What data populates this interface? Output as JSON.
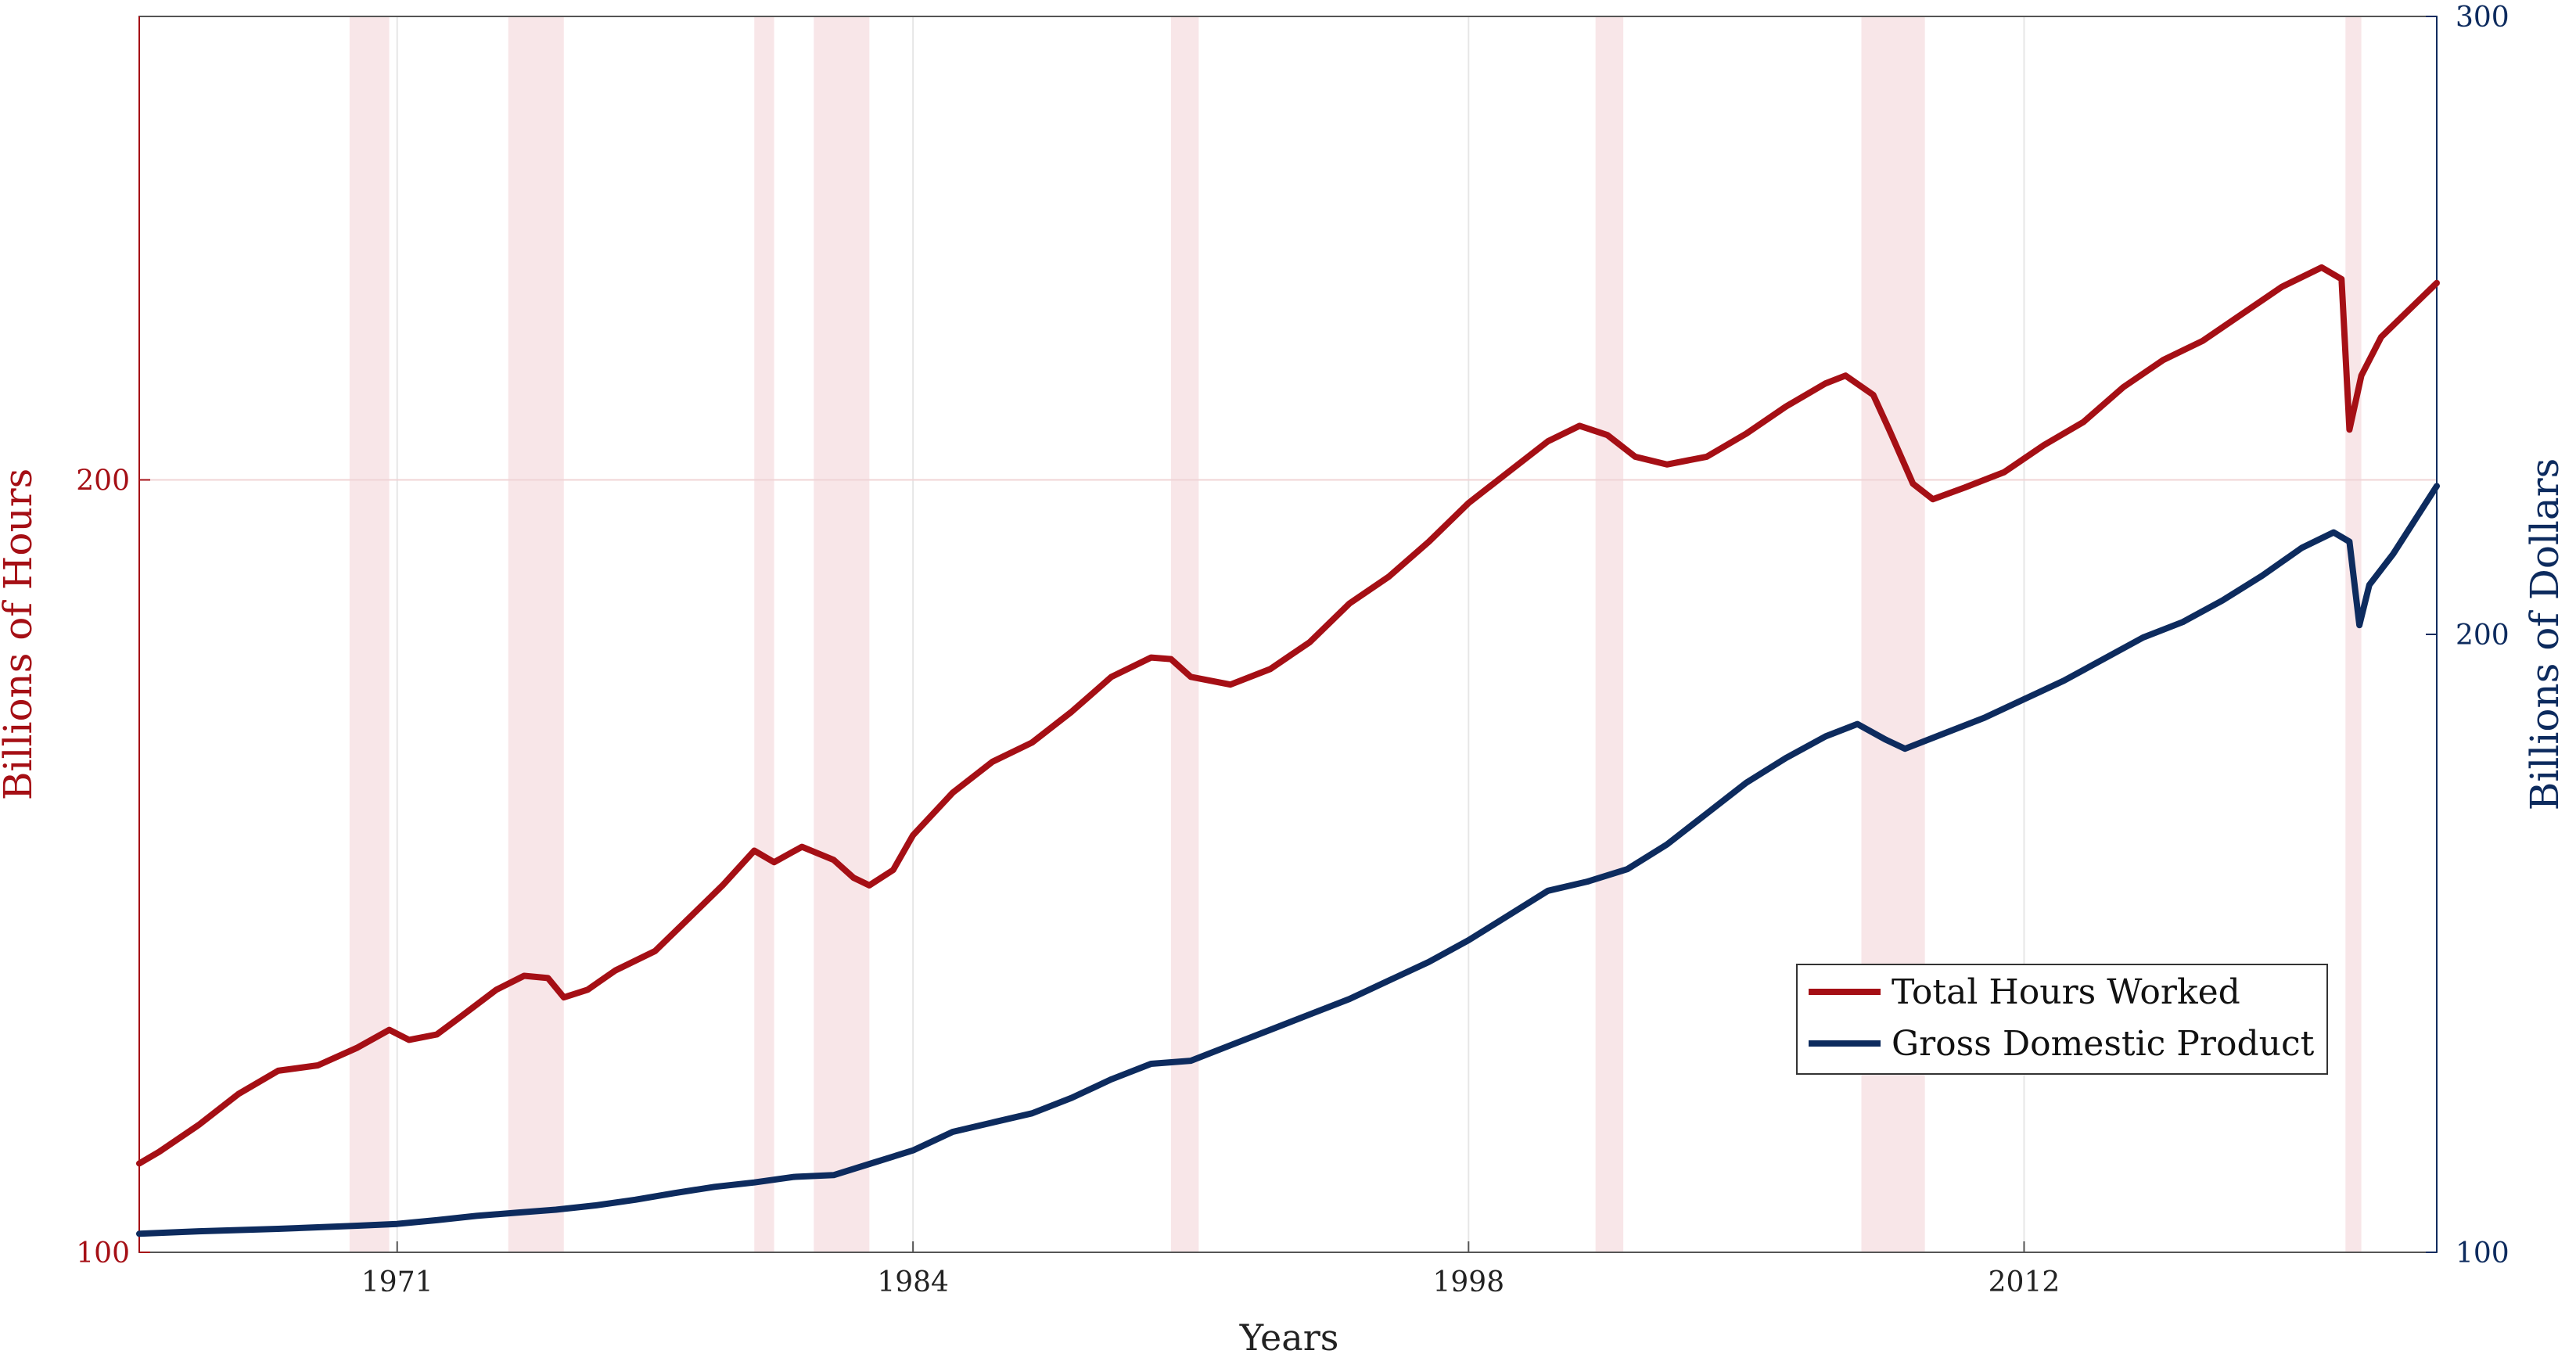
{
  "chart_data": {
    "type": "line",
    "xlabel": "Years",
    "ylabel_left": "Billions of Hours",
    "ylabel_right": "Billions of Dollars",
    "xlim": [
      1964.5,
      2022.4
    ],
    "ylim_left": [
      100,
      260
    ],
    "ylim_right": [
      100,
      300
    ],
    "x_ticks": [
      1971,
      1984,
      1998,
      2012
    ],
    "y_ticks_left": [
      100,
      200
    ],
    "y_ticks_right": [
      100,
      200,
      300
    ],
    "grid": true,
    "legend_position": "lower-right",
    "colors": {
      "hours": "#a50f15",
      "gdp": "#0d2b5e",
      "recession": "#f8e6e8"
    },
    "recessions": [
      [
        1969.8,
        1970.8
      ],
      [
        1973.8,
        1975.2
      ],
      [
        1980.0,
        1980.5
      ],
      [
        1981.5,
        1982.9
      ],
      [
        1990.5,
        1991.2
      ],
      [
        2001.2,
        2001.9
      ],
      [
        2007.9,
        2009.5
      ],
      [
        2020.1,
        2020.5
      ]
    ],
    "series": [
      {
        "name": "Total Hours Worked",
        "axis": "left",
        "color": "#a50f15",
        "points": [
          [
            1964.5,
            111.5
          ],
          [
            1965.0,
            113.0
          ],
          [
            1966.0,
            116.5
          ],
          [
            1967.0,
            120.5
          ],
          [
            1968.0,
            123.5
          ],
          [
            1969.0,
            124.2
          ],
          [
            1970.0,
            126.5
          ],
          [
            1970.8,
            128.8
          ],
          [
            1971.3,
            127.5
          ],
          [
            1972.0,
            128.2
          ],
          [
            1972.6,
            130.5
          ],
          [
            1973.5,
            134.0
          ],
          [
            1974.2,
            135.8
          ],
          [
            1974.8,
            135.5
          ],
          [
            1975.2,
            133.0
          ],
          [
            1975.8,
            134.0
          ],
          [
            1976.5,
            136.5
          ],
          [
            1977.5,
            139.0
          ],
          [
            1978.5,
            144.0
          ],
          [
            1979.2,
            147.5
          ],
          [
            1980.0,
            152.0
          ],
          [
            1980.5,
            150.5
          ],
          [
            1981.2,
            152.5
          ],
          [
            1982.0,
            150.8
          ],
          [
            1982.5,
            148.5
          ],
          [
            1982.9,
            147.5
          ],
          [
            1983.5,
            149.5
          ],
          [
            1984.0,
            154.0
          ],
          [
            1985.0,
            159.5
          ],
          [
            1986.0,
            163.5
          ],
          [
            1987.0,
            166.0
          ],
          [
            1988.0,
            170.0
          ],
          [
            1989.0,
            174.5
          ],
          [
            1990.0,
            177.0
          ],
          [
            1990.5,
            176.8
          ],
          [
            1991.0,
            174.5
          ],
          [
            1992.0,
            173.5
          ],
          [
            1993.0,
            175.5
          ],
          [
            1994.0,
            179.0
          ],
          [
            1995.0,
            184.0
          ],
          [
            1996.0,
            187.5
          ],
          [
            1997.0,
            192.0
          ],
          [
            1998.0,
            197.0
          ],
          [
            1999.0,
            201.0
          ],
          [
            2000.0,
            205.0
          ],
          [
            2000.8,
            207.0
          ],
          [
            2001.5,
            205.8
          ],
          [
            2002.2,
            203.0
          ],
          [
            2003.0,
            202.0
          ],
          [
            2004.0,
            203.0
          ],
          [
            2005.0,
            206.0
          ],
          [
            2006.0,
            209.5
          ],
          [
            2007.0,
            212.5
          ],
          [
            2007.5,
            213.5
          ],
          [
            2008.2,
            211.0
          ],
          [
            2008.6,
            206.5
          ],
          [
            2009.2,
            199.5
          ],
          [
            2009.7,
            197.5
          ],
          [
            2010.5,
            199.0
          ],
          [
            2011.5,
            201.0
          ],
          [
            2012.5,
            204.5
          ],
          [
            2013.5,
            207.5
          ],
          [
            2014.5,
            212.0
          ],
          [
            2015.5,
            215.5
          ],
          [
            2016.5,
            218.0
          ],
          [
            2017.5,
            221.5
          ],
          [
            2018.5,
            225.0
          ],
          [
            2019.5,
            227.5
          ],
          [
            2020.0,
            226.0
          ],
          [
            2020.2,
            206.5
          ],
          [
            2020.5,
            213.5
          ],
          [
            2021.0,
            218.5
          ],
          [
            2021.5,
            221.0
          ],
          [
            2022.4,
            225.5
          ]
        ]
      },
      {
        "name": "Gross Domestic Product",
        "axis": "right",
        "color": "#0d2b5e",
        "points": [
          [
            1964.5,
            103.0
          ],
          [
            1966.0,
            103.4
          ],
          [
            1968.0,
            103.8
          ],
          [
            1970.0,
            104.3
          ],
          [
            1971.0,
            104.6
          ],
          [
            1972.0,
            105.2
          ],
          [
            1973.0,
            105.9
          ],
          [
            1974.0,
            106.4
          ],
          [
            1975.0,
            106.9
          ],
          [
            1976.0,
            107.6
          ],
          [
            1977.0,
            108.5
          ],
          [
            1978.0,
            109.6
          ],
          [
            1979.0,
            110.6
          ],
          [
            1980.0,
            111.3
          ],
          [
            1981.0,
            112.2
          ],
          [
            1982.0,
            112.5
          ],
          [
            1983.0,
            114.5
          ],
          [
            1984.0,
            116.5
          ],
          [
            1985.0,
            119.5
          ],
          [
            1986.0,
            121.0
          ],
          [
            1987.0,
            122.5
          ],
          [
            1988.0,
            125.0
          ],
          [
            1989.0,
            128.0
          ],
          [
            1990.0,
            130.5
          ],
          [
            1991.0,
            131.0
          ],
          [
            1992.0,
            133.5
          ],
          [
            1993.0,
            136.0
          ],
          [
            1994.0,
            138.5
          ],
          [
            1995.0,
            141.0
          ],
          [
            1996.0,
            144.0
          ],
          [
            1997.0,
            147.0
          ],
          [
            1998.0,
            150.5
          ],
          [
            1999.0,
            154.5
          ],
          [
            2000.0,
            158.5
          ],
          [
            2001.0,
            160.0
          ],
          [
            2002.0,
            162.0
          ],
          [
            2003.0,
            166.0
          ],
          [
            2004.0,
            171.0
          ],
          [
            2005.0,
            176.0
          ],
          [
            2006.0,
            180.0
          ],
          [
            2007.0,
            183.5
          ],
          [
            2007.8,
            185.5
          ],
          [
            2008.5,
            183.0
          ],
          [
            2009.0,
            181.5
          ],
          [
            2010.0,
            184.0
          ],
          [
            2011.0,
            186.5
          ],
          [
            2012.0,
            189.5
          ],
          [
            2013.0,
            192.5
          ],
          [
            2014.0,
            196.0
          ],
          [
            2015.0,
            199.5
          ],
          [
            2016.0,
            202.0
          ],
          [
            2017.0,
            205.5
          ],
          [
            2018.0,
            209.5
          ],
          [
            2019.0,
            214.0
          ],
          [
            2019.8,
            216.5
          ],
          [
            2020.2,
            215.0
          ],
          [
            2020.45,
            201.5
          ],
          [
            2020.7,
            208.0
          ],
          [
            2021.3,
            213.0
          ],
          [
            2022.0,
            220.0
          ],
          [
            2022.4,
            224.0
          ]
        ]
      }
    ],
    "legend": [
      "Total Hours Worked",
      "Gross Domestic Product"
    ]
  }
}
